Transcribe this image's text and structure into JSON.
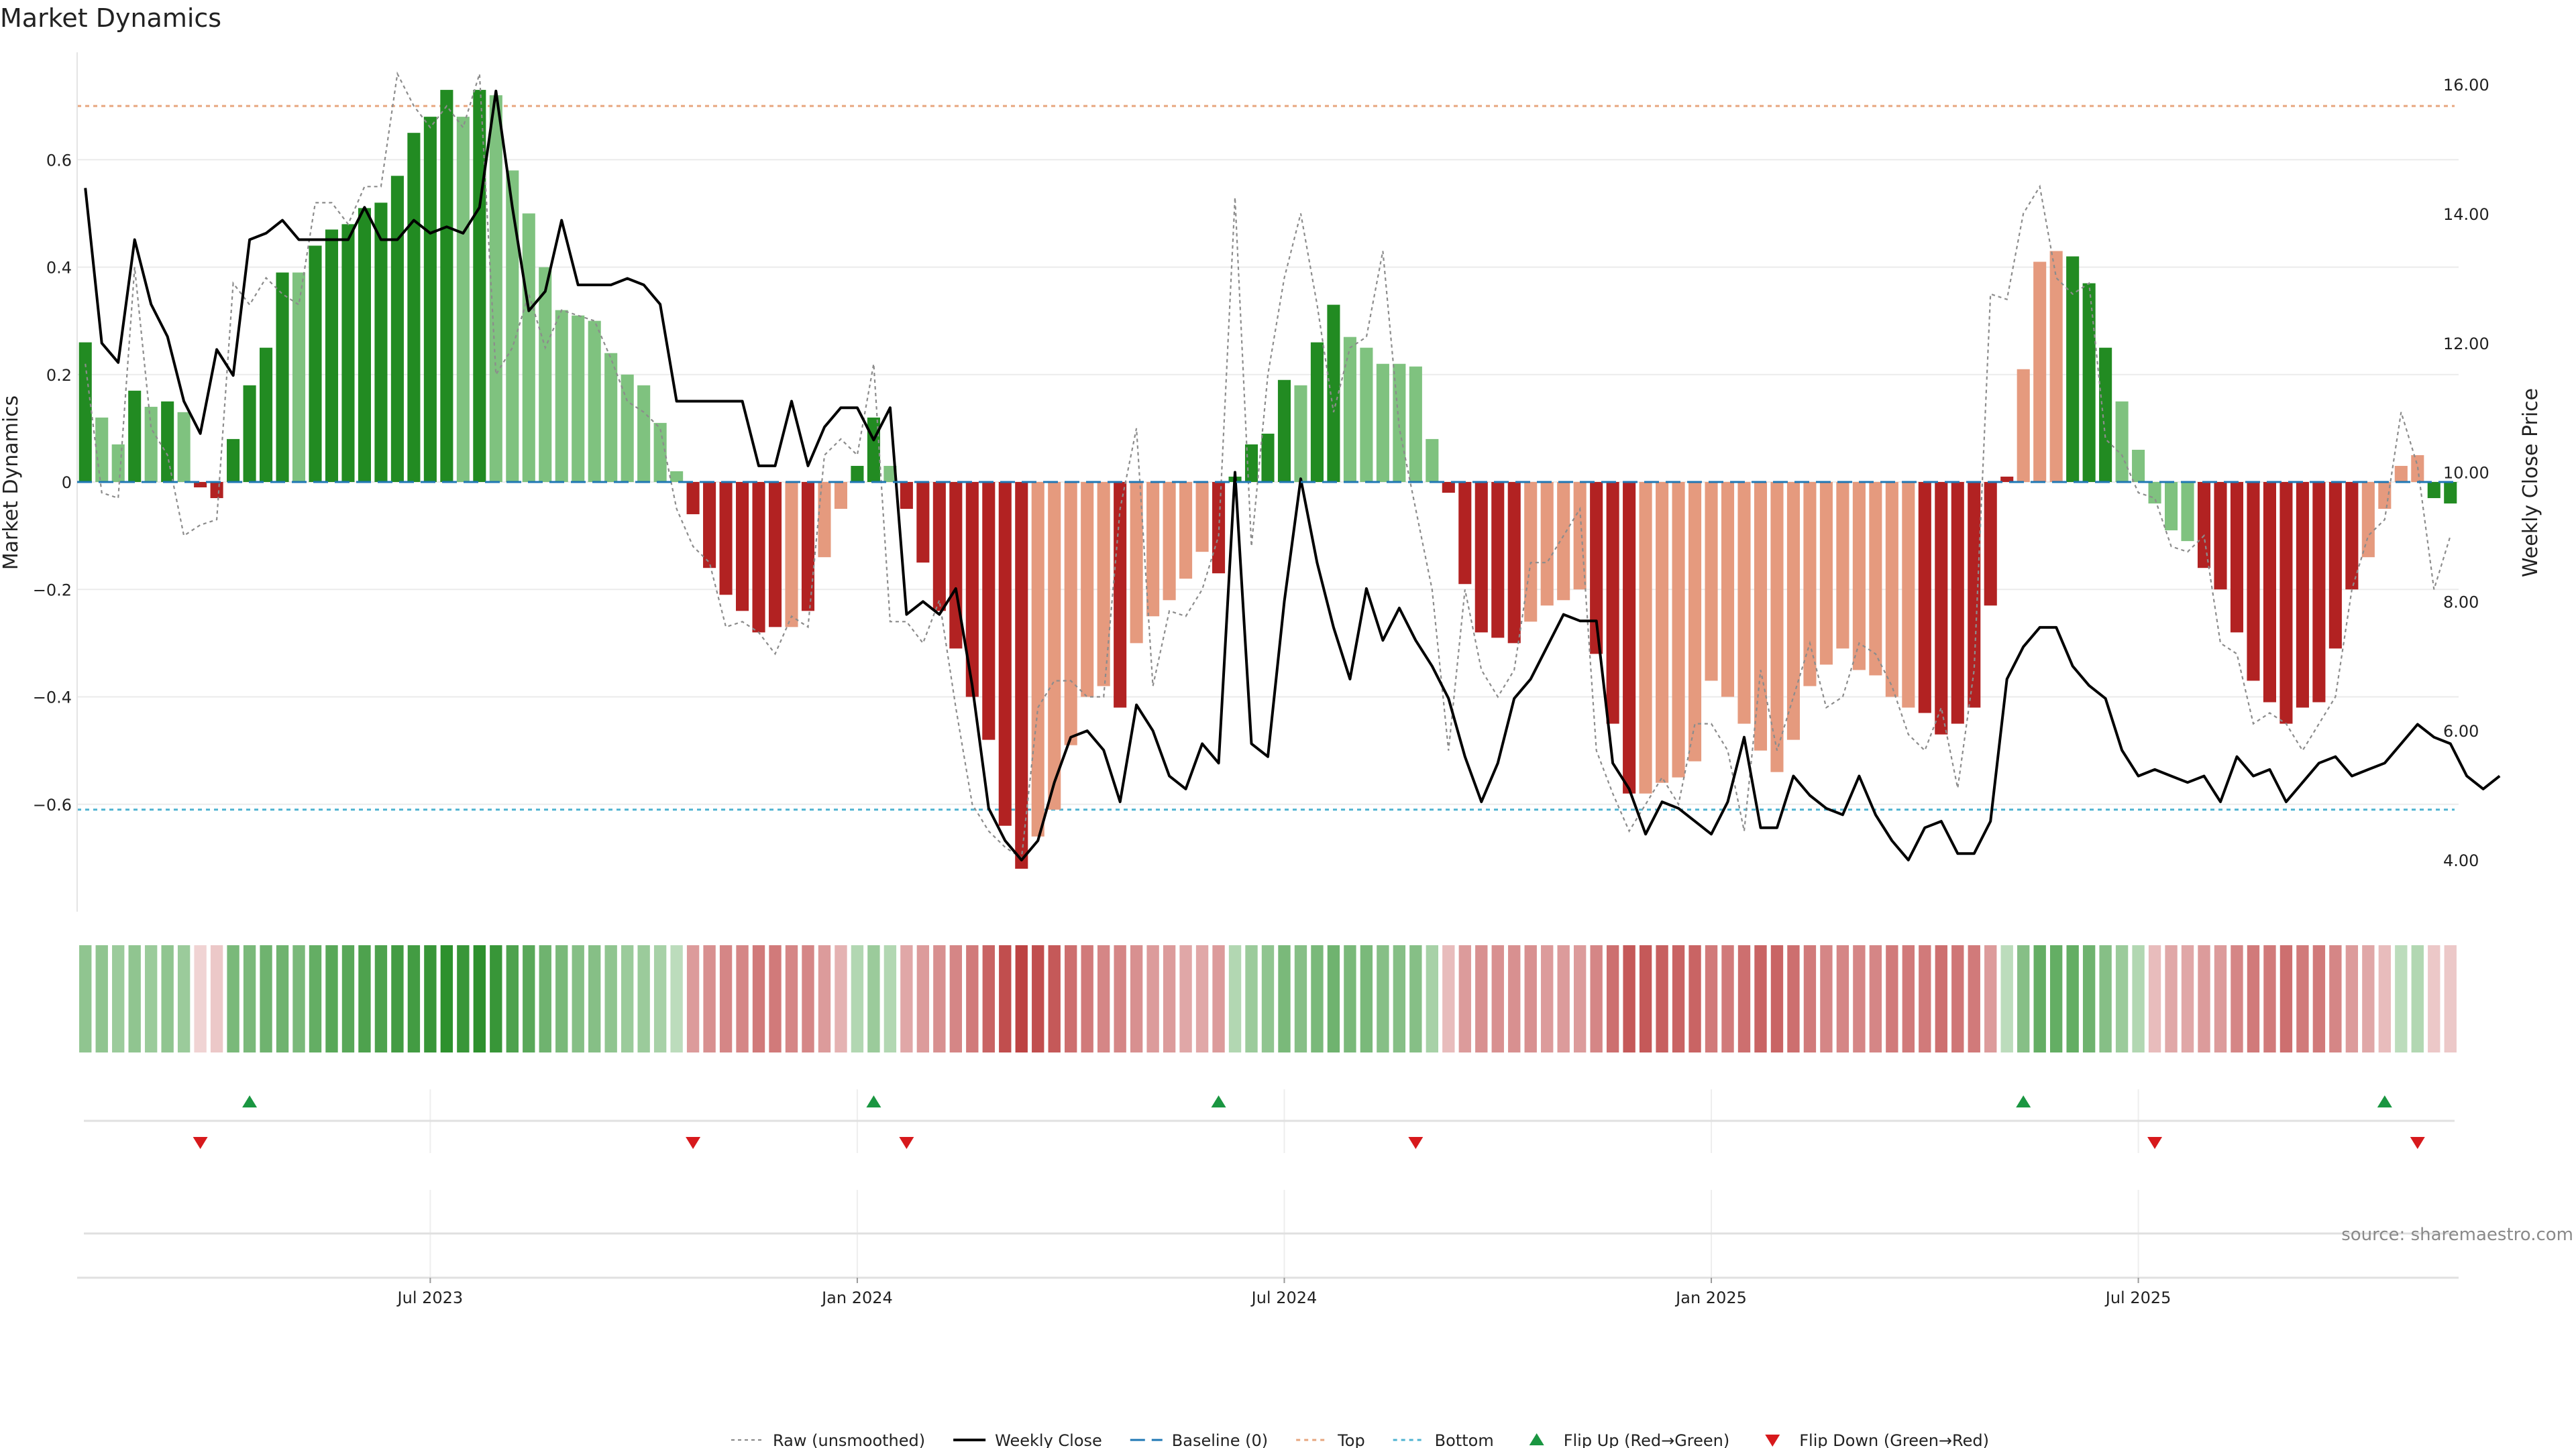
{
  "chart_data": {
    "type": "bar",
    "title": "Market Dynamics",
    "ylabel_left": "Market Dynamics",
    "ylabel_right": "Weekly Close Price",
    "ylim_left": [
      -0.8,
      0.8
    ],
    "ylim_right": [
      3.2,
      16.5
    ],
    "yticks_left": [
      -0.6,
      -0.4,
      -0.2,
      0,
      0.2,
      0.4,
      0.6
    ],
    "ytick_labels_left": [
      "−0.6",
      "−0.4",
      "−0.2",
      "0",
      "0.2",
      "0.4",
      "0.6"
    ],
    "yticks_right": [
      4,
      6,
      8,
      10,
      12,
      14,
      16
    ],
    "ytick_labels_right": [
      "4.00",
      "6.00",
      "8.00",
      "10.00",
      "12.00",
      "14.00",
      "16.00"
    ],
    "x_tick_positions": [
      21.5,
      47.5,
      73.5,
      99.5,
      125.5
    ],
    "x_tick_labels": [
      "Jul 2023",
      "Jan 2024",
      "Jul 2024",
      "Jan 2025",
      "Jul 2025"
    ],
    "top_line": 0.7,
    "bottom_line": -0.61,
    "baseline": 0,
    "colors": {
      "strong_green": "#228b22",
      "light_green": "#7fc27f",
      "strong_red": "#b22222",
      "light_red": "#e59a7e",
      "close": "#000000",
      "raw": "#8c8c8c",
      "baseline": "#1f77b4",
      "top": "#e7a67f",
      "bottom": "#4fb3d1",
      "flip_up": "#1a9641",
      "flip_down": "#d7191c"
    },
    "series": [
      {
        "name": "Market Dynamics",
        "values": [
          0.26,
          0.12,
          0.07,
          0.17,
          0.14,
          0.15,
          0.13,
          -0.01,
          -0.03,
          0.08,
          0.18,
          0.25,
          0.39,
          0.39,
          0.44,
          0.47,
          0.48,
          0.51,
          0.52,
          0.57,
          0.65,
          0.68,
          0.73,
          0.68,
          0.73,
          0.72,
          0.58,
          0.5,
          0.4,
          0.32,
          0.31,
          0.3,
          0.24,
          0.2,
          0.18,
          0.11,
          0.02,
          -0.06,
          -0.16,
          -0.21,
          -0.24,
          -0.28,
          -0.27,
          -0.27,
          -0.24,
          -0.14,
          -0.05,
          0.03,
          0.12,
          0.03,
          -0.05,
          -0.15,
          -0.24,
          -0.31,
          -0.4,
          -0.48,
          -0.64,
          -0.72,
          -0.66,
          -0.61,
          -0.49,
          -0.4,
          -0.38,
          -0.42,
          -0.3,
          -0.25,
          -0.22,
          -0.18,
          -0.13,
          -0.17,
          0.01,
          0.07,
          0.09,
          0.19,
          0.18,
          0.26,
          0.33,
          0.27,
          0.25,
          0.22,
          0.22,
          0.215,
          0.08,
          -0.02,
          -0.19,
          -0.28,
          -0.29,
          -0.3,
          -0.26,
          -0.23,
          -0.22,
          -0.2,
          -0.32,
          -0.45,
          -0.58,
          -0.58,
          -0.56,
          -0.55,
          -0.52,
          -0.37,
          -0.4,
          -0.45,
          -0.5,
          -0.54,
          -0.48,
          -0.38,
          -0.34,
          -0.31,
          -0.35,
          -0.36,
          -0.4,
          -0.42,
          -0.43,
          -0.47,
          -0.45,
          -0.42,
          -0.23,
          0.01,
          0.21,
          0.41,
          0.43,
          0.42,
          0.37,
          0.25,
          0.15,
          0.06,
          -0.04,
          -0.09,
          -0.11,
          -0.16,
          -0.2,
          -0.28,
          -0.37,
          -0.41,
          -0.45,
          -0.42,
          -0.41,
          -0.31,
          -0.2,
          -0.14,
          -0.05,
          0.03,
          0.05,
          -0.03,
          -0.04
        ],
        "colors": [
          "sg",
          "lg",
          "lg",
          "sg",
          "lg",
          "sg",
          "lg",
          "sr",
          "sr",
          "sg",
          "sg",
          "sg",
          "sg",
          "lg",
          "sg",
          "sg",
          "sg",
          "sg",
          "sg",
          "sg",
          "sg",
          "sg",
          "sg",
          "lg",
          "sg",
          "lg",
          "lg",
          "lg",
          "lg",
          "lg",
          "lg",
          "lg",
          "lg",
          "lg",
          "lg",
          "lg",
          "lg",
          "sr",
          "sr",
          "sr",
          "sr",
          "sr",
          "sr",
          "lr",
          "sr",
          "lr",
          "lr",
          "sg",
          "sg",
          "lg",
          "sr",
          "sr",
          "sr",
          "sr",
          "sr",
          "sr",
          "sr",
          "sr",
          "lr",
          "lr",
          "lr",
          "lr",
          "lr",
          "sr",
          "lr",
          "lr",
          "lr",
          "lr",
          "lr",
          "sr",
          "sg",
          "sg",
          "sg",
          "sg",
          "lg",
          "sg",
          "sg",
          "lg",
          "lg",
          "lg",
          "lg",
          "lg",
          "lg",
          "sr",
          "sr",
          "sr",
          "sr",
          "sr",
          "lr",
          "lr",
          "lr",
          "lr",
          "sr",
          "sr",
          "sr",
          "lr",
          "lr",
          "lr",
          "lr",
          "lr",
          "lr",
          "lr",
          "lr",
          "lr",
          "lr",
          "lr",
          "lr",
          "lr",
          "lr",
          "lr",
          "lr",
          "lr",
          "sr",
          "sr",
          "sr",
          "sr",
          "sr",
          "sr",
          "lr",
          "lr",
          "lr",
          "sg",
          "sg",
          "sg",
          "lg",
          "lg",
          "lg",
          "lg",
          "lg",
          "sr",
          "sr",
          "sr",
          "sr",
          "sr",
          "sr",
          "sr",
          "sr",
          "sr",
          "sr",
          "lr",
          "lr",
          "lr",
          "lr",
          "sg",
          "sg",
          "sr",
          "sr"
        ]
      },
      {
        "name": "Raw (unsmoothed)",
        "values": [
          0.22,
          -0.02,
          -0.03,
          0.4,
          0.1,
          0.05,
          -0.1,
          -0.08,
          -0.07,
          0.37,
          0.33,
          0.38,
          0.35,
          0.33,
          0.52,
          0.52,
          0.48,
          0.55,
          0.55,
          0.76,
          0.7,
          0.66,
          0.7,
          0.66,
          0.76,
          0.2,
          0.25,
          0.35,
          0.25,
          0.32,
          0.31,
          0.3,
          0.23,
          0.15,
          0.13,
          0.1,
          -0.05,
          -0.12,
          -0.15,
          -0.27,
          -0.26,
          -0.28,
          -0.32,
          -0.25,
          -0.27,
          0.05,
          0.08,
          0.05,
          0.22,
          -0.26,
          -0.26,
          -0.3,
          -0.22,
          -0.42,
          -0.6,
          -0.65,
          -0.68,
          -0.7,
          -0.42,
          -0.37,
          -0.37,
          -0.4,
          -0.4,
          -0.05,
          0.1,
          -0.38,
          -0.24,
          -0.25,
          -0.2,
          -0.1,
          0.53,
          -0.12,
          0.2,
          0.38,
          0.5,
          0.33,
          0.13,
          0.25,
          0.27,
          0.43,
          0.1,
          -0.05,
          -0.2,
          -0.5,
          -0.2,
          -0.35,
          -0.4,
          -0.35,
          -0.15,
          -0.15,
          -0.1,
          -0.05,
          -0.5,
          -0.58,
          -0.65,
          -0.6,
          -0.55,
          -0.6,
          -0.45,
          -0.45,
          -0.5,
          -0.65,
          -0.35,
          -0.5,
          -0.4,
          -0.3,
          -0.42,
          -0.4,
          -0.3,
          -0.32,
          -0.38,
          -0.47,
          -0.5,
          -0.42,
          -0.57,
          -0.35,
          0.35,
          0.34,
          0.5,
          0.55,
          0.38,
          0.35,
          0.37,
          0.08,
          0.05,
          -0.02,
          -0.03,
          -0.12,
          -0.13,
          -0.1,
          -0.3,
          -0.32,
          -0.45,
          -0.43,
          -0.45,
          -0.5,
          -0.45,
          -0.4,
          -0.2,
          -0.1,
          -0.07,
          0.13,
          0.03,
          -0.2,
          -0.1
        ]
      },
      {
        "name": "Weekly Close",
        "values": [
          14.4,
          12.0,
          11.7,
          13.6,
          12.6,
          12.1,
          11.1,
          10.6,
          11.9,
          11.5,
          13.6,
          13.7,
          13.9,
          13.6,
          13.6,
          13.6,
          13.6,
          14.1,
          13.6,
          13.6,
          13.9,
          13.7,
          13.8,
          13.7,
          14.1,
          15.9,
          14.1,
          12.5,
          12.8,
          13.9,
          12.9,
          12.9,
          12.9,
          13.0,
          12.9,
          12.6,
          11.1,
          11.1,
          11.1,
          11.1,
          11.1,
          10.1,
          10.1,
          11.1,
          10.1,
          10.7,
          11.0,
          11.0,
          10.5,
          11.0,
          7.8,
          8.0,
          7.8,
          8.2,
          6.7,
          4.8,
          4.3,
          4.0,
          4.3,
          5.2,
          5.9,
          6.0,
          5.7,
          4.9,
          6.4,
          6.0,
          5.3,
          5.1,
          5.8,
          5.5,
          10.0,
          5.8,
          5.6,
          8.0,
          9.9,
          8.6,
          7.6,
          6.8,
          8.2,
          7.4,
          7.9,
          7.4,
          7.0,
          6.5,
          5.6,
          4.9,
          5.5,
          6.5,
          6.8,
          7.3,
          7.8,
          7.7,
          7.7,
          5.5,
          5.1,
          4.4,
          4.9,
          4.8,
          4.6,
          4.4,
          4.9,
          5.9,
          4.5,
          4.5,
          5.3,
          5.0,
          4.8,
          4.7,
          5.3,
          4.7,
          4.3,
          4.0,
          4.5,
          4.6,
          4.1,
          4.1,
          4.6,
          6.8,
          7.3,
          7.6,
          7.6,
          7.0,
          6.7,
          6.5,
          5.7,
          5.3,
          5.4,
          5.3,
          5.2,
          5.3,
          4.9,
          5.6,
          5.3,
          5.4,
          4.9,
          5.2,
          5.5,
          5.6,
          5.3,
          5.4,
          5.5,
          5.8,
          6.1,
          5.9,
          5.8,
          5.3,
          5.1,
          5.3
        ]
      }
    ],
    "heatmap_intensity": [
      0.5,
      0.5,
      0.45,
      0.5,
      0.45,
      0.5,
      0.45,
      0.2,
      0.25,
      0.6,
      0.6,
      0.65,
      0.65,
      0.6,
      0.7,
      0.75,
      0.75,
      0.8,
      0.8,
      0.85,
      0.85,
      0.9,
      0.95,
      0.9,
      0.95,
      0.9,
      0.8,
      0.75,
      0.65,
      0.6,
      0.55,
      0.55,
      0.5,
      0.45,
      0.45,
      0.4,
      0.3,
      0.45,
      0.5,
      0.55,
      0.55,
      0.6,
      0.6,
      0.55,
      0.55,
      0.45,
      0.35,
      0.35,
      0.45,
      0.35,
      0.4,
      0.45,
      0.5,
      0.55,
      0.6,
      0.7,
      0.8,
      0.85,
      0.8,
      0.75,
      0.65,
      0.6,
      0.55,
      0.55,
      0.5,
      0.45,
      0.45,
      0.4,
      0.4,
      0.45,
      0.35,
      0.45,
      0.5,
      0.6,
      0.55,
      0.6,
      0.65,
      0.6,
      0.6,
      0.55,
      0.55,
      0.55,
      0.4,
      0.3,
      0.45,
      0.5,
      0.5,
      0.5,
      0.5,
      0.45,
      0.45,
      0.45,
      0.55,
      0.65,
      0.75,
      0.75,
      0.72,
      0.7,
      0.7,
      0.6,
      0.6,
      0.65,
      0.7,
      0.7,
      0.65,
      0.6,
      0.55,
      0.55,
      0.55,
      0.55,
      0.6,
      0.6,
      0.6,
      0.65,
      0.62,
      0.6,
      0.45,
      0.3,
      0.55,
      0.7,
      0.7,
      0.7,
      0.65,
      0.55,
      0.45,
      0.35,
      0.3,
      0.4,
      0.4,
      0.45,
      0.45,
      0.55,
      0.6,
      0.6,
      0.65,
      0.6,
      0.6,
      0.55,
      0.45,
      0.4,
      0.3,
      0.3,
      0.35,
      0.25,
      0.25
    ],
    "flip_up_indices": [
      10,
      48,
      69,
      118,
      140
    ],
    "flip_down_indices": [
      7,
      37,
      50,
      81,
      126,
      142
    ],
    "legend": [
      {
        "label": "Raw (unsmoothed)",
        "kind": "raw"
      },
      {
        "label": "Weekly Close",
        "kind": "close"
      },
      {
        "label": "Baseline (0)",
        "kind": "baseline"
      },
      {
        "label": "Top",
        "kind": "top"
      },
      {
        "label": "Bottom",
        "kind": "bottom"
      },
      {
        "label": "Flip Up (Red→Green)",
        "kind": "flip_up"
      },
      {
        "label": "Flip Down (Green→Red)",
        "kind": "flip_down"
      }
    ],
    "source": "source: sharemaestro.com"
  }
}
